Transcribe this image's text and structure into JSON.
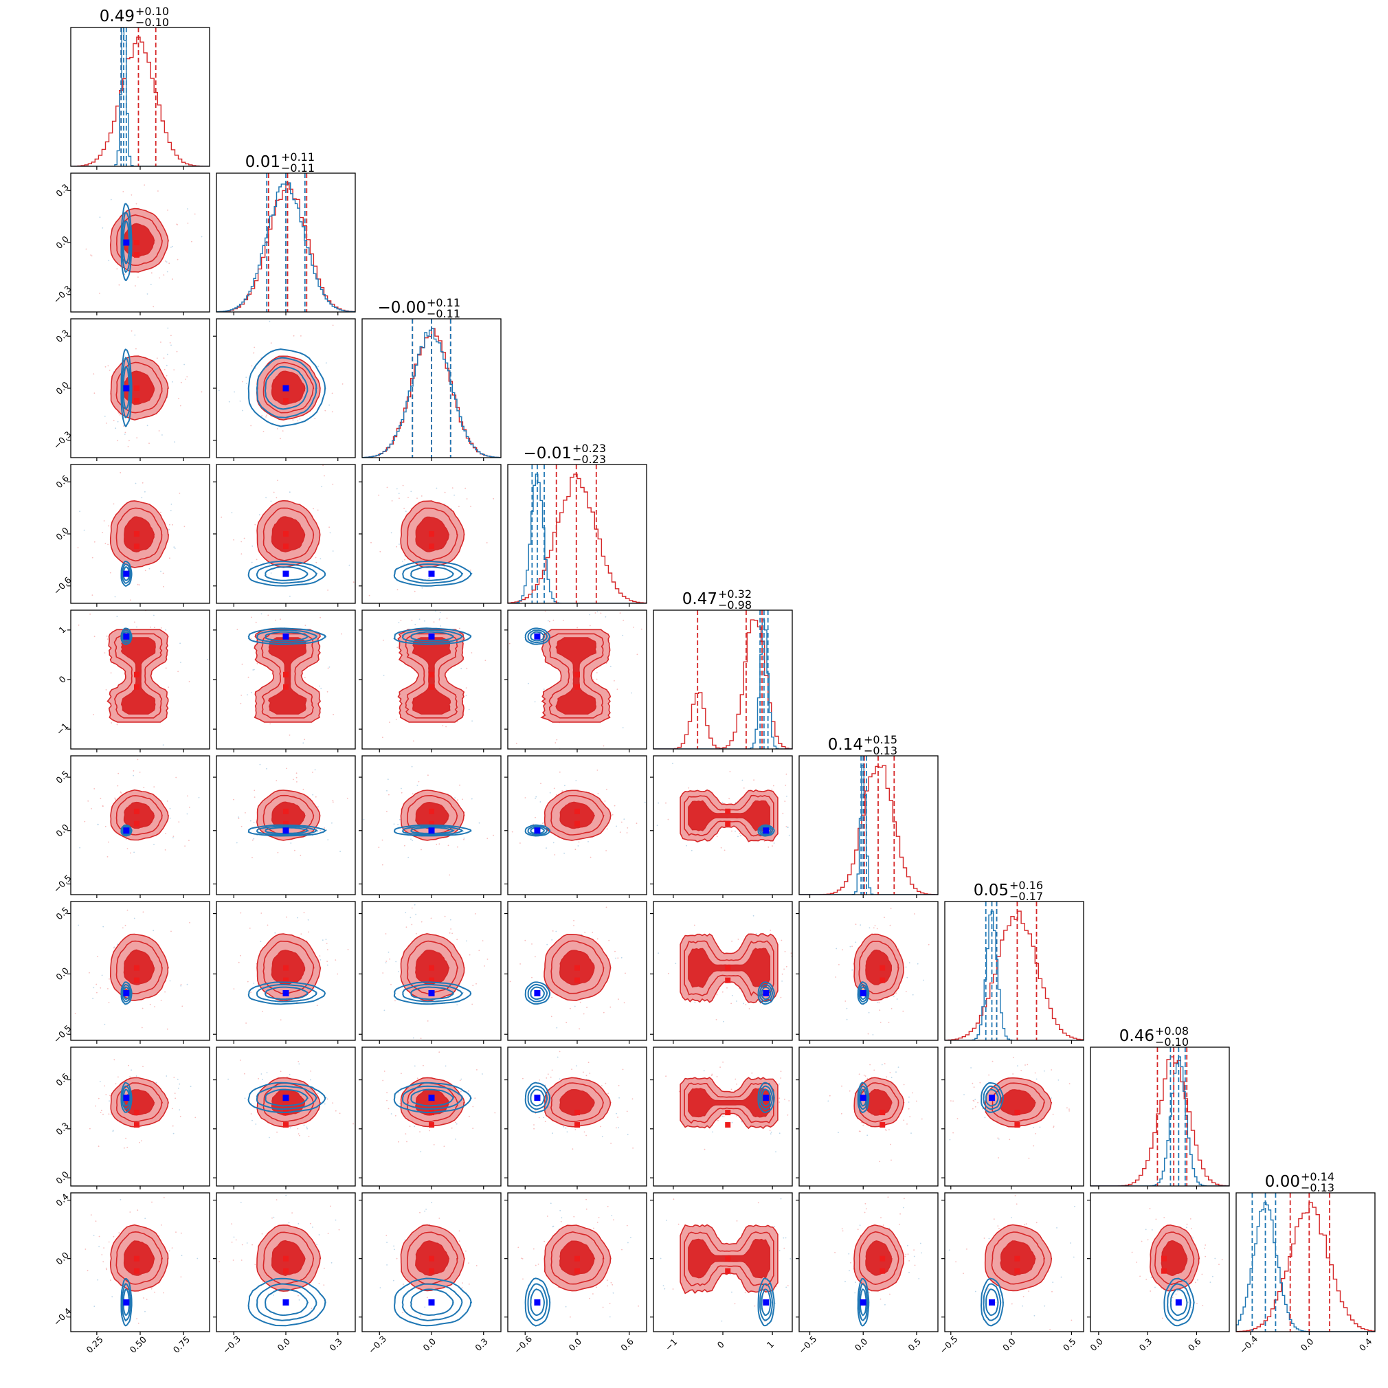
{
  "chart_data": {
    "type": "corner",
    "colors": {
      "red": "#d62728",
      "red_fill_outer": "#f0a3a4",
      "red_fill_inner": "#dc2a2c",
      "blue": "#1f77b4",
      "truth_red": "#ee1c1c",
      "truth_blue": "#0000ff"
    },
    "parameters": [
      {
        "title_value": "0.49",
        "title_plus": "+0.10",
        "title_minus": "−0.10",
        "range": [
          0.1,
          0.9
        ],
        "ticks": [
          0.25,
          0.5,
          0.75
        ],
        "tick_labels": [
          "0.25",
          "0.50",
          "0.75"
        ]
      },
      {
        "title_value": "0.01",
        "title_plus": "+0.11",
        "title_minus": "−0.11",
        "range": [
          -0.4,
          0.4
        ],
        "ticks": [
          -0.3,
          0.0,
          0.3
        ],
        "tick_labels": [
          "−0.3",
          "0.0",
          "0.3"
        ]
      },
      {
        "title_value": "−0.00",
        "title_plus": "+0.11",
        "title_minus": "−0.11",
        "range": [
          -0.4,
          0.4
        ],
        "ticks": [
          -0.3,
          0.0,
          0.3
        ],
        "tick_labels": [
          "−0.3",
          "0.0",
          "0.3"
        ]
      },
      {
        "title_value": "−0.01",
        "title_plus": "+0.23",
        "title_minus": "−0.23",
        "range": [
          -0.8,
          0.8
        ],
        "ticks": [
          -0.6,
          0.0,
          0.6
        ],
        "tick_labels": [
          "−0.6",
          "0.0",
          "0.6"
        ]
      },
      {
        "title_value": "0.47",
        "title_plus": "+0.32",
        "title_minus": "−0.98",
        "range": [
          -1.4,
          1.4
        ],
        "ticks": [
          -1,
          0,
          1
        ],
        "tick_labels": [
          "−1",
          "0",
          "1"
        ]
      },
      {
        "title_value": "0.14",
        "title_plus": "+0.15",
        "title_minus": "−0.13",
        "range": [
          -0.6,
          0.7
        ],
        "ticks": [
          -0.5,
          0.0,
          0.5
        ],
        "tick_labels": [
          "−0.5",
          "0.0",
          "0.5"
        ]
      },
      {
        "title_value": "0.05",
        "title_plus": "+0.16",
        "title_minus": "−0.17",
        "range": [
          -0.55,
          0.6
        ],
        "ticks": [
          -0.5,
          0.0,
          0.5
        ],
        "tick_labels": [
          "−0.5",
          "0.0",
          "0.5"
        ]
      },
      {
        "title_value": "0.46",
        "title_plus": "+0.08",
        "title_minus": "−0.10",
        "range": [
          -0.05,
          0.8
        ],
        "ticks": [
          0.0,
          0.3,
          0.6
        ],
        "tick_labels": [
          "0.0",
          "0.3",
          "0.6"
        ]
      },
      {
        "title_value": "0.00",
        "title_plus": "+0.14",
        "title_minus": "−0.13",
        "range": [
          -0.5,
          0.45
        ],
        "ticks": [
          -0.4,
          0.0,
          0.4
        ],
        "tick_labels": [
          "−0.4",
          "0.0",
          "0.4"
        ]
      }
    ],
    "red_quantiles": [
      [
        0.39,
        0.49,
        0.59
      ],
      [
        -0.1,
        0.01,
        0.12
      ],
      [
        -0.11,
        -0.0,
        0.11
      ],
      [
        -0.24,
        -0.01,
        0.22
      ],
      [
        -0.51,
        0.47,
        0.79
      ],
      [
        0.01,
        0.14,
        0.29
      ],
      [
        -0.12,
        0.05,
        0.21
      ],
      [
        0.36,
        0.46,
        0.54
      ],
      [
        -0.13,
        0.0,
        0.14
      ]
    ],
    "blue_quantiles": [
      [
        0.39,
        0.405,
        0.42
      ],
      [
        -0.11,
        0.0,
        0.11
      ],
      [
        -0.11,
        0.0,
        0.11
      ],
      [
        -0.52,
        -0.46,
        -0.38
      ],
      [
        0.75,
        0.83,
        0.91
      ],
      [
        -0.02,
        0.0,
        0.03
      ],
      [
        -0.21,
        -0.16,
        -0.12
      ],
      [
        0.44,
        0.49,
        0.53
      ],
      [
        -0.39,
        -0.3,
        -0.23
      ]
    ],
    "blue_truths": [
      0.42,
      0.0,
      0.0,
      -0.46,
      0.87,
      0.0,
      -0.16,
      0.49,
      -0.3
    ],
    "red_truth_markers": [
      0.48,
      0.0,
      0.0,
      0.0,
      0.1,
      0.18,
      0.05,
      0.4,
      0.0
    ]
  }
}
